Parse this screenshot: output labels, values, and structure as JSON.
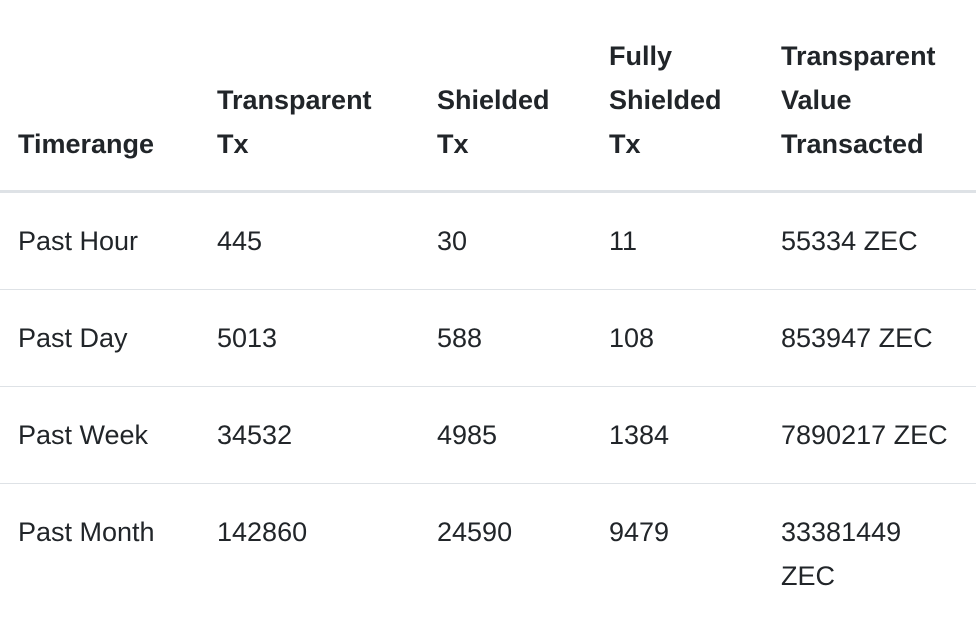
{
  "table": {
    "headers": [
      "Timerange",
      "Transparent Tx",
      "Shielded Tx",
      "Fully Shielded Tx",
      "Transparent Value Transacted"
    ],
    "rows": [
      [
        "Past Hour",
        "445",
        "30",
        "11",
        "55334 ZEC"
      ],
      [
        "Past Day",
        "5013",
        "588",
        "108",
        "853947 ZEC"
      ],
      [
        "Past Week",
        "34532",
        "4985",
        "1384",
        "7890217 ZEC"
      ],
      [
        "Past Month",
        "142860",
        "24590",
        "9479",
        "33381449 ZEC"
      ]
    ]
  }
}
